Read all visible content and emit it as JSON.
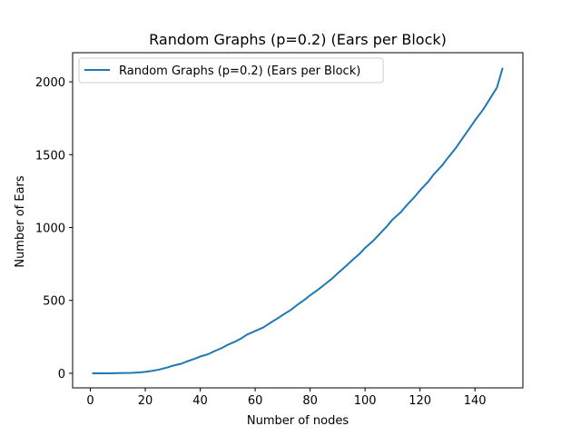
{
  "chart_data": {
    "type": "line",
    "title": "Random Graphs (p=0.2) (Ears per Block)",
    "xlabel": "Number of nodes",
    "ylabel": "Number of Ears",
    "xlim": [
      -6.45,
      157.45
    ],
    "ylim": [
      -100,
      2200
    ],
    "xticks": [
      0,
      20,
      40,
      60,
      80,
      100,
      120,
      140
    ],
    "yticks": [
      0,
      500,
      1000,
      1500,
      2000
    ],
    "grid": false,
    "legend_position": "upper left",
    "series": [
      {
        "name": "Random Graphs (p=0.2) (Ears per Block)",
        "color": "#1f77b4",
        "x": [
          1,
          5,
          10,
          15,
          18,
          20,
          22,
          25,
          28,
          30,
          33,
          35,
          38,
          40,
          43,
          45,
          48,
          50,
          53,
          55,
          57,
          60,
          63,
          65,
          68,
          70,
          73,
          75,
          78,
          80,
          83,
          85,
          88,
          90,
          93,
          95,
          98,
          100,
          103,
          105,
          108,
          110,
          113,
          115,
          118,
          120,
          123,
          125,
          128,
          130,
          133,
          135,
          138,
          140,
          143,
          145,
          148,
          150
        ],
        "y": [
          0,
          0,
          1,
          3,
          6,
          10,
          15,
          25,
          40,
          52,
          65,
          80,
          100,
          115,
          132,
          150,
          175,
          195,
          220,
          240,
          265,
          290,
          315,
          340,
          375,
          400,
          435,
          465,
          505,
          535,
          575,
          605,
          650,
          685,
          735,
          770,
          820,
          860,
          910,
          950,
          1010,
          1055,
          1105,
          1150,
          1210,
          1255,
          1315,
          1365,
          1425,
          1475,
          1545,
          1600,
          1680,
          1735,
          1810,
          1870,
          1960,
          2090
        ]
      }
    ]
  }
}
